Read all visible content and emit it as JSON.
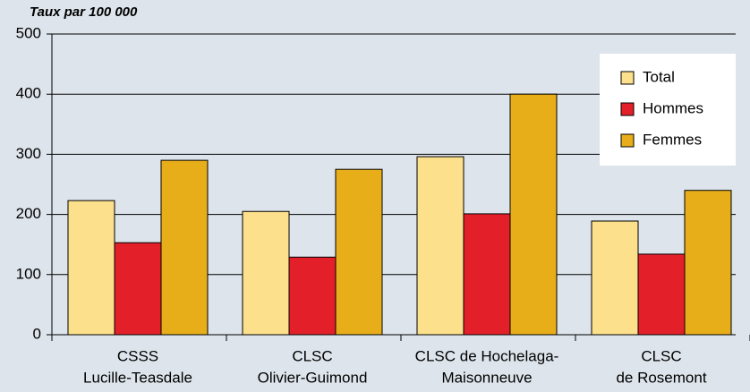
{
  "chart_data": {
    "type": "bar",
    "y_label": "Taux par 100 000",
    "categories": [
      [
        "CSSS",
        "Lucille-Teasdale"
      ],
      [
        "CLSC",
        "Olivier-Guimond"
      ],
      [
        "CLSC de Hochelaga-",
        "Maisonneuve"
      ],
      [
        "CLSC",
        "de Rosemont"
      ]
    ],
    "series": [
      {
        "name": "Total",
        "color": "#fde08c",
        "values": [
          223,
          205,
          296,
          189
        ]
      },
      {
        "name": "Hommes",
        "color": "#e3202a",
        "values": [
          153,
          129,
          201,
          134
        ]
      },
      {
        "name": "Femmes",
        "color": "#e8ae1a",
        "values": [
          290,
          275,
          400,
          240
        ]
      }
    ],
    "ylim": [
      0,
      500
    ],
    "yticks": [
      0,
      100,
      200,
      300,
      400,
      500
    ],
    "grid": true,
    "legend": "upper right"
  }
}
